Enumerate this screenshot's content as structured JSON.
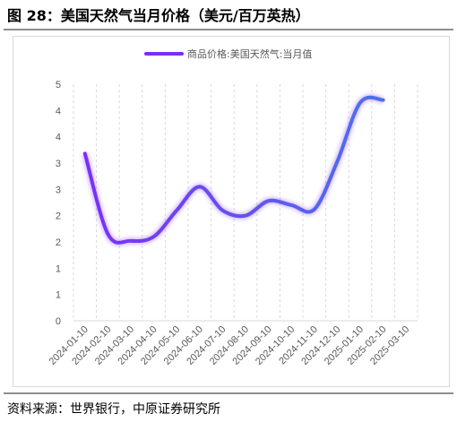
{
  "figure": {
    "title": "图 28：美国天然气当月价格（美元/百万英热）",
    "source": "资料来源：世界银行，中原证券研究所"
  },
  "colors": {
    "line_start": "#7b2ff7",
    "line_end": "#4a73e8",
    "grid": "#d9d9d9",
    "tick_text": "#595959"
  },
  "chart_data": {
    "type": "line",
    "title": "",
    "xlabel": "",
    "ylabel": "",
    "legend_position": "top-center",
    "grid": "vertical-dashed",
    "ylim": [
      0,
      4.5
    ],
    "y_tick_values": [
      0,
      0.5,
      1,
      1.5,
      2,
      2.5,
      3,
      3.5,
      4,
      4.5
    ],
    "y_tick_labels": [
      "0",
      "1",
      "1",
      "2",
      "2",
      "3",
      "3",
      "4",
      "4",
      "5"
    ],
    "categories": [
      "2024-01-10",
      "2024-02-10",
      "2024-03-10",
      "2024-04-10",
      "2024-05-10",
      "2024-06-10",
      "2024-07-10",
      "2024-08-10",
      "2024-09-10",
      "2024-10-10",
      "2024-11-10",
      "2024-12-10",
      "2025-01-10",
      "2025-02-10",
      "2025-03-10"
    ],
    "series": [
      {
        "name": "商品价格:美国天然气:当月值",
        "x": [
          "2024-01-10",
          "2024-02-10",
          "2024-03-10",
          "2024-04-10",
          "2024-05-10",
          "2024-06-10",
          "2024-07-10",
          "2024-08-10",
          "2024-09-10",
          "2024-10-10",
          "2024-11-10",
          "2024-12-10",
          "2025-01-10",
          "2025-02-10",
          "2025-03-10"
        ],
        "values": [
          3.18,
          1.65,
          1.52,
          1.6,
          2.1,
          2.55,
          2.1,
          2.0,
          2.28,
          2.2,
          2.12,
          3.03,
          4.15,
          4.2,
          null
        ]
      }
    ]
  }
}
